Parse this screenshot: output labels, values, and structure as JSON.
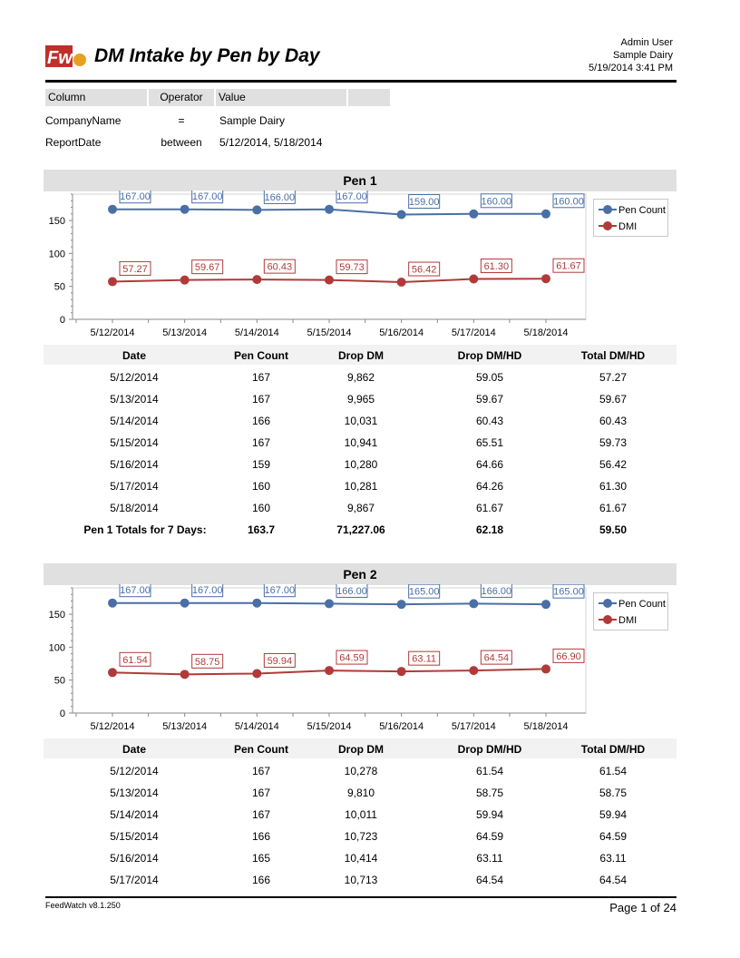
{
  "header": {
    "logo_text": "Fw",
    "title": "DM Intake by Pen by Day",
    "user": "Admin User",
    "company": "Sample Dairy",
    "datetime": "5/19/2014 3:41 PM"
  },
  "filter": {
    "columns": [
      "Column",
      "Operator",
      "Value"
    ],
    "rows": [
      {
        "column": "CompanyName",
        "operator": "=",
        "value": "Sample Dairy"
      },
      {
        "column": "ReportDate",
        "operator": "between",
        "value": "5/12/2014, 5/18/2014"
      }
    ]
  },
  "table_headers": [
    "Date",
    "Pen Count",
    "Drop DM",
    "Drop DM/HD",
    "Total DM/HD"
  ],
  "pens": [
    {
      "title": "Pen 1",
      "rows": [
        [
          "5/12/2014",
          "167",
          "9,862",
          "59.05",
          "57.27"
        ],
        [
          "5/13/2014",
          "167",
          "9,965",
          "59.67",
          "59.67"
        ],
        [
          "5/14/2014",
          "166",
          "10,031",
          "60.43",
          "60.43"
        ],
        [
          "5/15/2014",
          "167",
          "10,941",
          "65.51",
          "59.73"
        ],
        [
          "5/16/2014",
          "159",
          "10,280",
          "64.66",
          "56.42"
        ],
        [
          "5/17/2014",
          "160",
          "10,281",
          "64.26",
          "61.30"
        ],
        [
          "5/18/2014",
          "160",
          "9,867",
          "61.67",
          "61.67"
        ]
      ],
      "totals": [
        "Pen 1 Totals for 7 Days:",
        "163.7",
        "71,227.06",
        "62.18",
        "59.50"
      ]
    },
    {
      "title": "Pen 2",
      "rows": [
        [
          "5/12/2014",
          "167",
          "10,278",
          "61.54",
          "61.54"
        ],
        [
          "5/13/2014",
          "167",
          "9,810",
          "58.75",
          "58.75"
        ],
        [
          "5/14/2014",
          "167",
          "10,011",
          "59.94",
          "59.94"
        ],
        [
          "5/15/2014",
          "166",
          "10,723",
          "64.59",
          "64.59"
        ],
        [
          "5/16/2014",
          "165",
          "10,414",
          "63.11",
          "63.11"
        ],
        [
          "5/17/2014",
          "166",
          "10,713",
          "64.54",
          "64.54"
        ]
      ]
    }
  ],
  "chart_data": [
    {
      "type": "line",
      "categories": [
        "5/12/2014",
        "5/13/2014",
        "5/14/2014",
        "5/15/2014",
        "5/16/2014",
        "5/17/2014",
        "5/18/2014"
      ],
      "series": [
        {
          "name": "Pen Count",
          "values": [
            167.0,
            167.0,
            166.0,
            167.0,
            159.0,
            160.0,
            160.0
          ],
          "color": "#4a6fa5"
        },
        {
          "name": "DMI",
          "values": [
            57.27,
            59.67,
            60.43,
            59.73,
            56.42,
            61.3,
            61.67
          ],
          "color": "#b03a3a"
        }
      ],
      "yticks": [
        0,
        50,
        100,
        150
      ],
      "ylim": [
        0,
        190
      ],
      "legend": "right",
      "grid": false
    },
    {
      "type": "line",
      "categories": [
        "5/12/2014",
        "5/13/2014",
        "5/14/2014",
        "5/15/2014",
        "5/16/2014",
        "5/17/2014",
        "5/18/2014"
      ],
      "series": [
        {
          "name": "Pen Count",
          "values": [
            167.0,
            167.0,
            167.0,
            166.0,
            165.0,
            166.0,
            165.0
          ],
          "color": "#4a6fa5"
        },
        {
          "name": "DMI",
          "values": [
            61.54,
            58.75,
            59.94,
            64.59,
            63.11,
            64.54,
            66.9
          ],
          "color": "#b03a3a"
        }
      ],
      "yticks": [
        0,
        50,
        100,
        150
      ],
      "ylim": [
        0,
        190
      ],
      "legend": "right",
      "grid": false
    }
  ],
  "footer": {
    "version": "FeedWatch v8.1.250",
    "page": "Page 1 of 24"
  }
}
